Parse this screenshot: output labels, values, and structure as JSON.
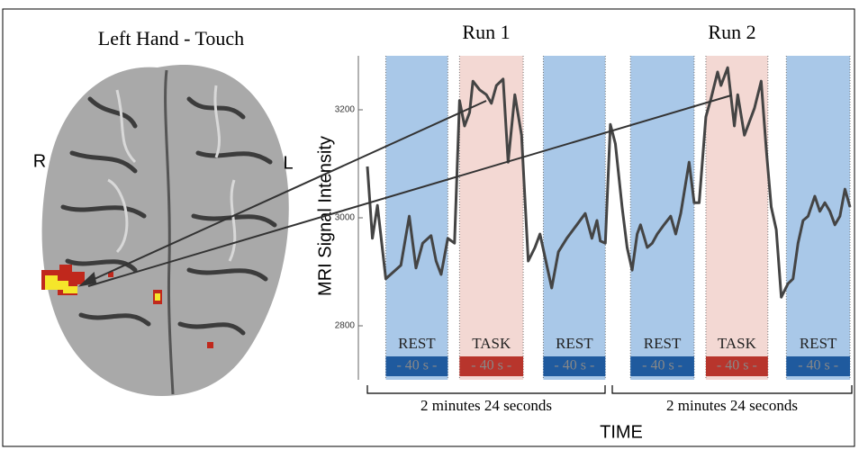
{
  "brain_panel": {
    "title": "Left Hand - Touch",
    "right_side_label": "R",
    "left_side_label": "L"
  },
  "chart_data": {
    "type": "line",
    "y_label": "MRI Signal Intensity",
    "x_label": "TIME",
    "color": "#444444",
    "xlim": [
      0,
      288
    ],
    "ylim": [
      2700,
      3300
    ],
    "yticks": [
      2800,
      3000,
      3200
    ],
    "runs": [
      {
        "title": "Run 1",
        "duration_label": "2 minutes 24 seconds",
        "start": 0,
        "end": 144
      },
      {
        "title": "Run 2",
        "duration_label": "2 minutes 24 seconds",
        "start": 144,
        "end": 288
      }
    ],
    "blocks": [
      {
        "label": "REST",
        "duration_label": "- 40 s -",
        "start": 11,
        "end": 48,
        "color": "#a9c8e8",
        "bar_color": "#1f5a9e"
      },
      {
        "label": "TASK",
        "duration_label": "- 40 s -",
        "start": 55,
        "end": 93,
        "color": "#f3d8d3",
        "bar_color": "#b8352c"
      },
      {
        "label": "REST",
        "duration_label": "- 40 s -",
        "start": 105,
        "end": 142,
        "color": "#a9c8e8",
        "bar_color": "#1f5a9e"
      },
      {
        "label": "REST",
        "duration_label": "- 40 s -",
        "start": 157,
        "end": 195,
        "color": "#a9c8e8",
        "bar_color": "#1f5a9e"
      },
      {
        "label": "TASK",
        "duration_label": "- 40 s -",
        "start": 202,
        "end": 239,
        "color": "#f3d8d3",
        "bar_color": "#b8352c"
      },
      {
        "label": "REST",
        "duration_label": "- 40 s -",
        "start": 250,
        "end": 288,
        "color": "#a9c8e8",
        "bar_color": "#1f5a9e"
      }
    ],
    "x": [
      0,
      3,
      6,
      11,
      20,
      25,
      29,
      33,
      38,
      41,
      44,
      48,
      52,
      55,
      58,
      61,
      63,
      67,
      71,
      74,
      77,
      81,
      84,
      88,
      92,
      96,
      100,
      103,
      110,
      114,
      119,
      125,
      130,
      134,
      137,
      139,
      142,
      145,
      148,
      152,
      155,
      158,
      161,
      163,
      167,
      170,
      173,
      177,
      181,
      184,
      187,
      192,
      195,
      198,
      202,
      205,
      209,
      211,
      215,
      219,
      221,
      225,
      228,
      231,
      235,
      238,
      241,
      244,
      247,
      251,
      254,
      257,
      260,
      263,
      267,
      270,
      273,
      276,
      279,
      282,
      285,
      288
    ],
    "values": [
      3095,
      2962,
      3023,
      2887,
      2912,
      3003,
      2907,
      2953,
      2967,
      2920,
      2895,
      2962,
      2953,
      3217,
      3170,
      3195,
      3253,
      3237,
      3228,
      3212,
      3245,
      3257,
      3103,
      3228,
      3153,
      2920,
      2945,
      2970,
      2870,
      2937,
      2962,
      2987,
      3008,
      2962,
      2995,
      2957,
      2953,
      3173,
      3137,
      3020,
      2945,
      2903,
      2970,
      2987,
      2945,
      2953,
      2970,
      2987,
      3003,
      2970,
      3008,
      3103,
      3028,
      3028,
      3187,
      3220,
      3270,
      3245,
      3278,
      3170,
      3228,
      3153,
      3178,
      3203,
      3253,
      3128,
      3020,
      2978,
      2853,
      2878,
      2887,
      2953,
      2995,
      3003,
      3040,
      3012,
      3028,
      3012,
      2987,
      3003,
      3053,
      3020
    ]
  }
}
